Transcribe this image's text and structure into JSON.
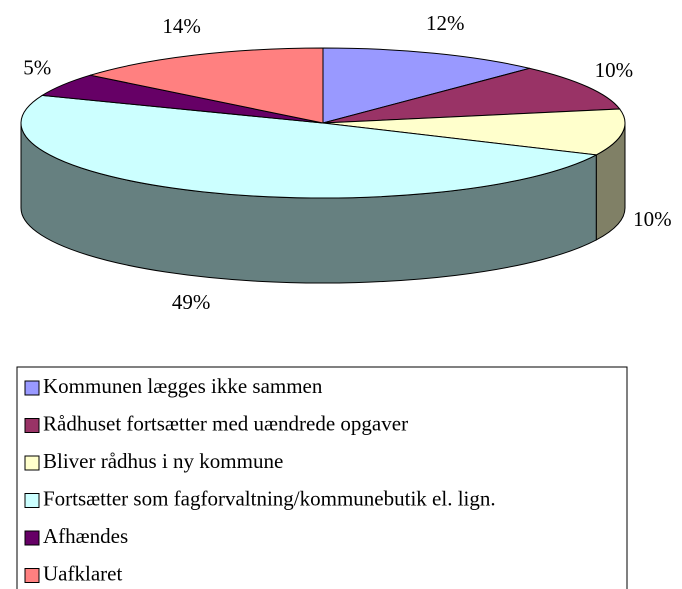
{
  "chart_data": {
    "type": "pie",
    "categories": [
      "Kommunen lægges ikke sammen",
      "Rådhuset fortsætter med uændrede opgaver",
      "Bliver rådhus i ny kommune",
      "Fortsætter som fagforvaltning/kommunebutik el. lign.",
      "Afhændes",
      "Uafklaret"
    ],
    "values": [
      12,
      10,
      10,
      49,
      5,
      14
    ],
    "value_labels": [
      "12%",
      "10%",
      "10%",
      "49%",
      "5%",
      "14%"
    ],
    "colors": [
      "#9999ff",
      "#993366",
      "#ffffcc",
      "#ccffff",
      "#660066",
      "#ff8080"
    ],
    "legend": "bottom"
  }
}
